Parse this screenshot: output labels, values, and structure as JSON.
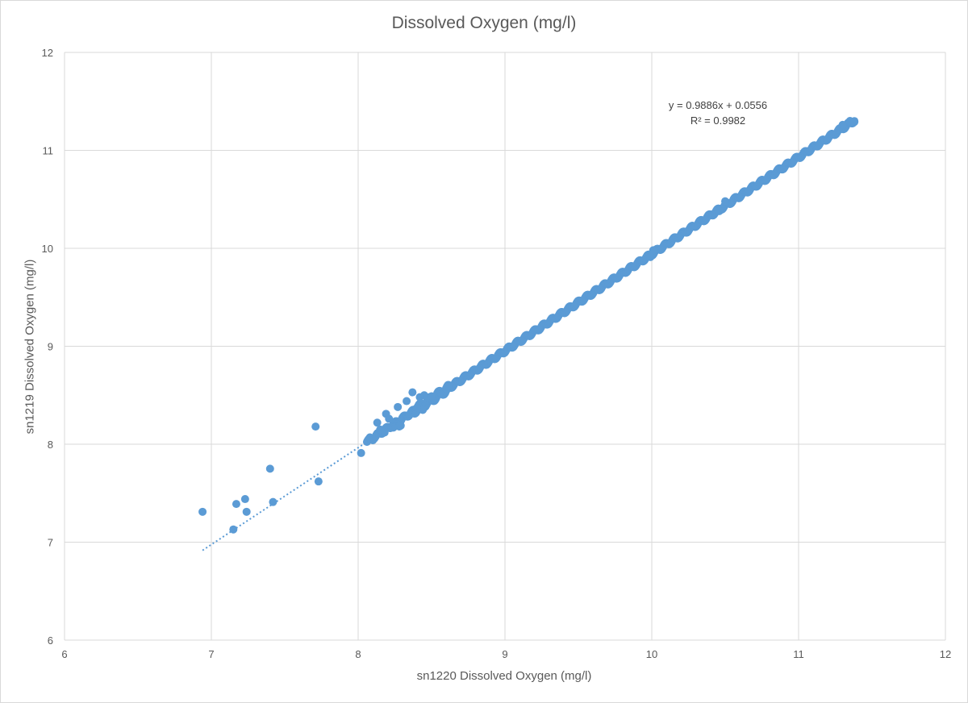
{
  "chart_data": {
    "type": "scatter",
    "title": "Dissolved Oxygen (mg/l)",
    "xlabel": "sn1220 Dissolved Oxygen (mg/l)",
    "ylabel": "sn1219 Dissolved Oxygen (mg/l)",
    "xlim": [
      6,
      12
    ],
    "ylim": [
      6,
      12
    ],
    "x_ticks": [
      "6",
      "7",
      "8",
      "9",
      "10",
      "11",
      "12"
    ],
    "y_ticks": [
      "6",
      "7",
      "8",
      "9",
      "10",
      "11",
      "12"
    ],
    "grid": true,
    "legend": "none",
    "marker_color": "#5B9BD5",
    "trendline": {
      "type": "linear",
      "slope": 0.9886,
      "intercept": 0.0556,
      "x_range": [
        6.94,
        8.4
      ],
      "style": "dotted",
      "equation_label": "y = 0.9886x + 0.0556",
      "r2_label": "R² = 0.9982"
    },
    "dense_band": {
      "description_x_range": [
        8.06,
        11.38
      ],
      "slope": 0.9886,
      "intercept": 0.0556
    },
    "series": [
      {
        "points": [
          [
            6.94,
            7.31
          ],
          [
            7.15,
            7.13
          ],
          [
            7.17,
            7.39
          ],
          [
            7.23,
            7.44
          ],
          [
            7.24,
            7.31
          ],
          [
            7.4,
            7.75
          ],
          [
            7.42,
            7.41
          ],
          [
            7.71,
            8.18
          ],
          [
            7.73,
            7.62
          ],
          [
            8.02,
            7.91
          ],
          [
            8.13,
            8.22
          ],
          [
            8.19,
            8.31
          ],
          [
            8.21,
            8.26
          ],
          [
            8.27,
            8.38
          ],
          [
            8.29,
            8.19
          ],
          [
            8.33,
            8.44
          ],
          [
            8.37,
            8.53
          ],
          [
            8.28,
            8.18
          ],
          [
            8.24,
            8.17
          ],
          [
            8.18,
            8.12
          ],
          [
            8.42,
            8.48
          ],
          [
            8.45,
            8.5
          ],
          [
            8.47,
            8.47
          ],
          [
            8.5,
            8.49
          ],
          [
            8.44,
            8.35
          ],
          [
            8.4,
            8.37
          ],
          [
            8.1,
            8.04
          ],
          [
            8.08,
            8.07
          ],
          [
            8.12,
            8.08
          ],
          [
            8.15,
            8.15
          ],
          [
            9.99,
            9.91
          ],
          [
            10.01,
            9.98
          ],
          [
            10.46,
            10.38
          ],
          [
            10.5,
            10.48
          ],
          [
            11.35,
            11.3
          ],
          [
            11.38,
            11.29
          ],
          [
            11.3,
            11.26
          ]
        ]
      }
    ]
  }
}
